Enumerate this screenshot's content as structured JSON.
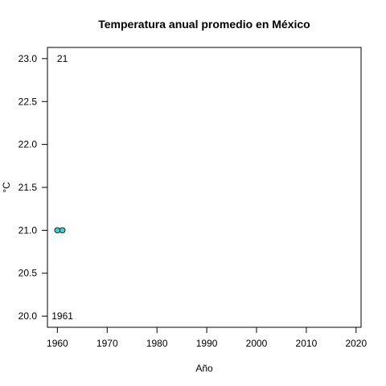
{
  "chart_data": {
    "type": "scatter",
    "title": "Temperatura anual promedio en México",
    "xlabel": "Año",
    "ylabel": "°C",
    "xlim": [
      1958,
      2021
    ],
    "ylim": [
      19.87,
      23.13
    ],
    "x_ticks": [
      1960,
      1970,
      1980,
      1990,
      2000,
      2010,
      2020
    ],
    "y_ticks": [
      20.0,
      20.5,
      21.0,
      21.5,
      22.0,
      22.5,
      23.0
    ],
    "y_tick_labels": [
      "20.0",
      "20.5",
      "21.0",
      "21.5",
      "22.0",
      "22.5",
      "23.0"
    ],
    "grid": false,
    "series": [
      {
        "points": [
          {
            "x": 1960,
            "y": 21.0
          },
          {
            "x": 1961,
            "y": 21.0
          }
        ]
      }
    ],
    "annotations": [
      {
        "text": "21",
        "x": 1961,
        "y": 23.0
      },
      {
        "text": "1961",
        "x": 1961,
        "y": 20.0
      }
    ],
    "colors": {
      "point_fill": "#36d0d9",
      "point_stroke": "#000000"
    }
  }
}
